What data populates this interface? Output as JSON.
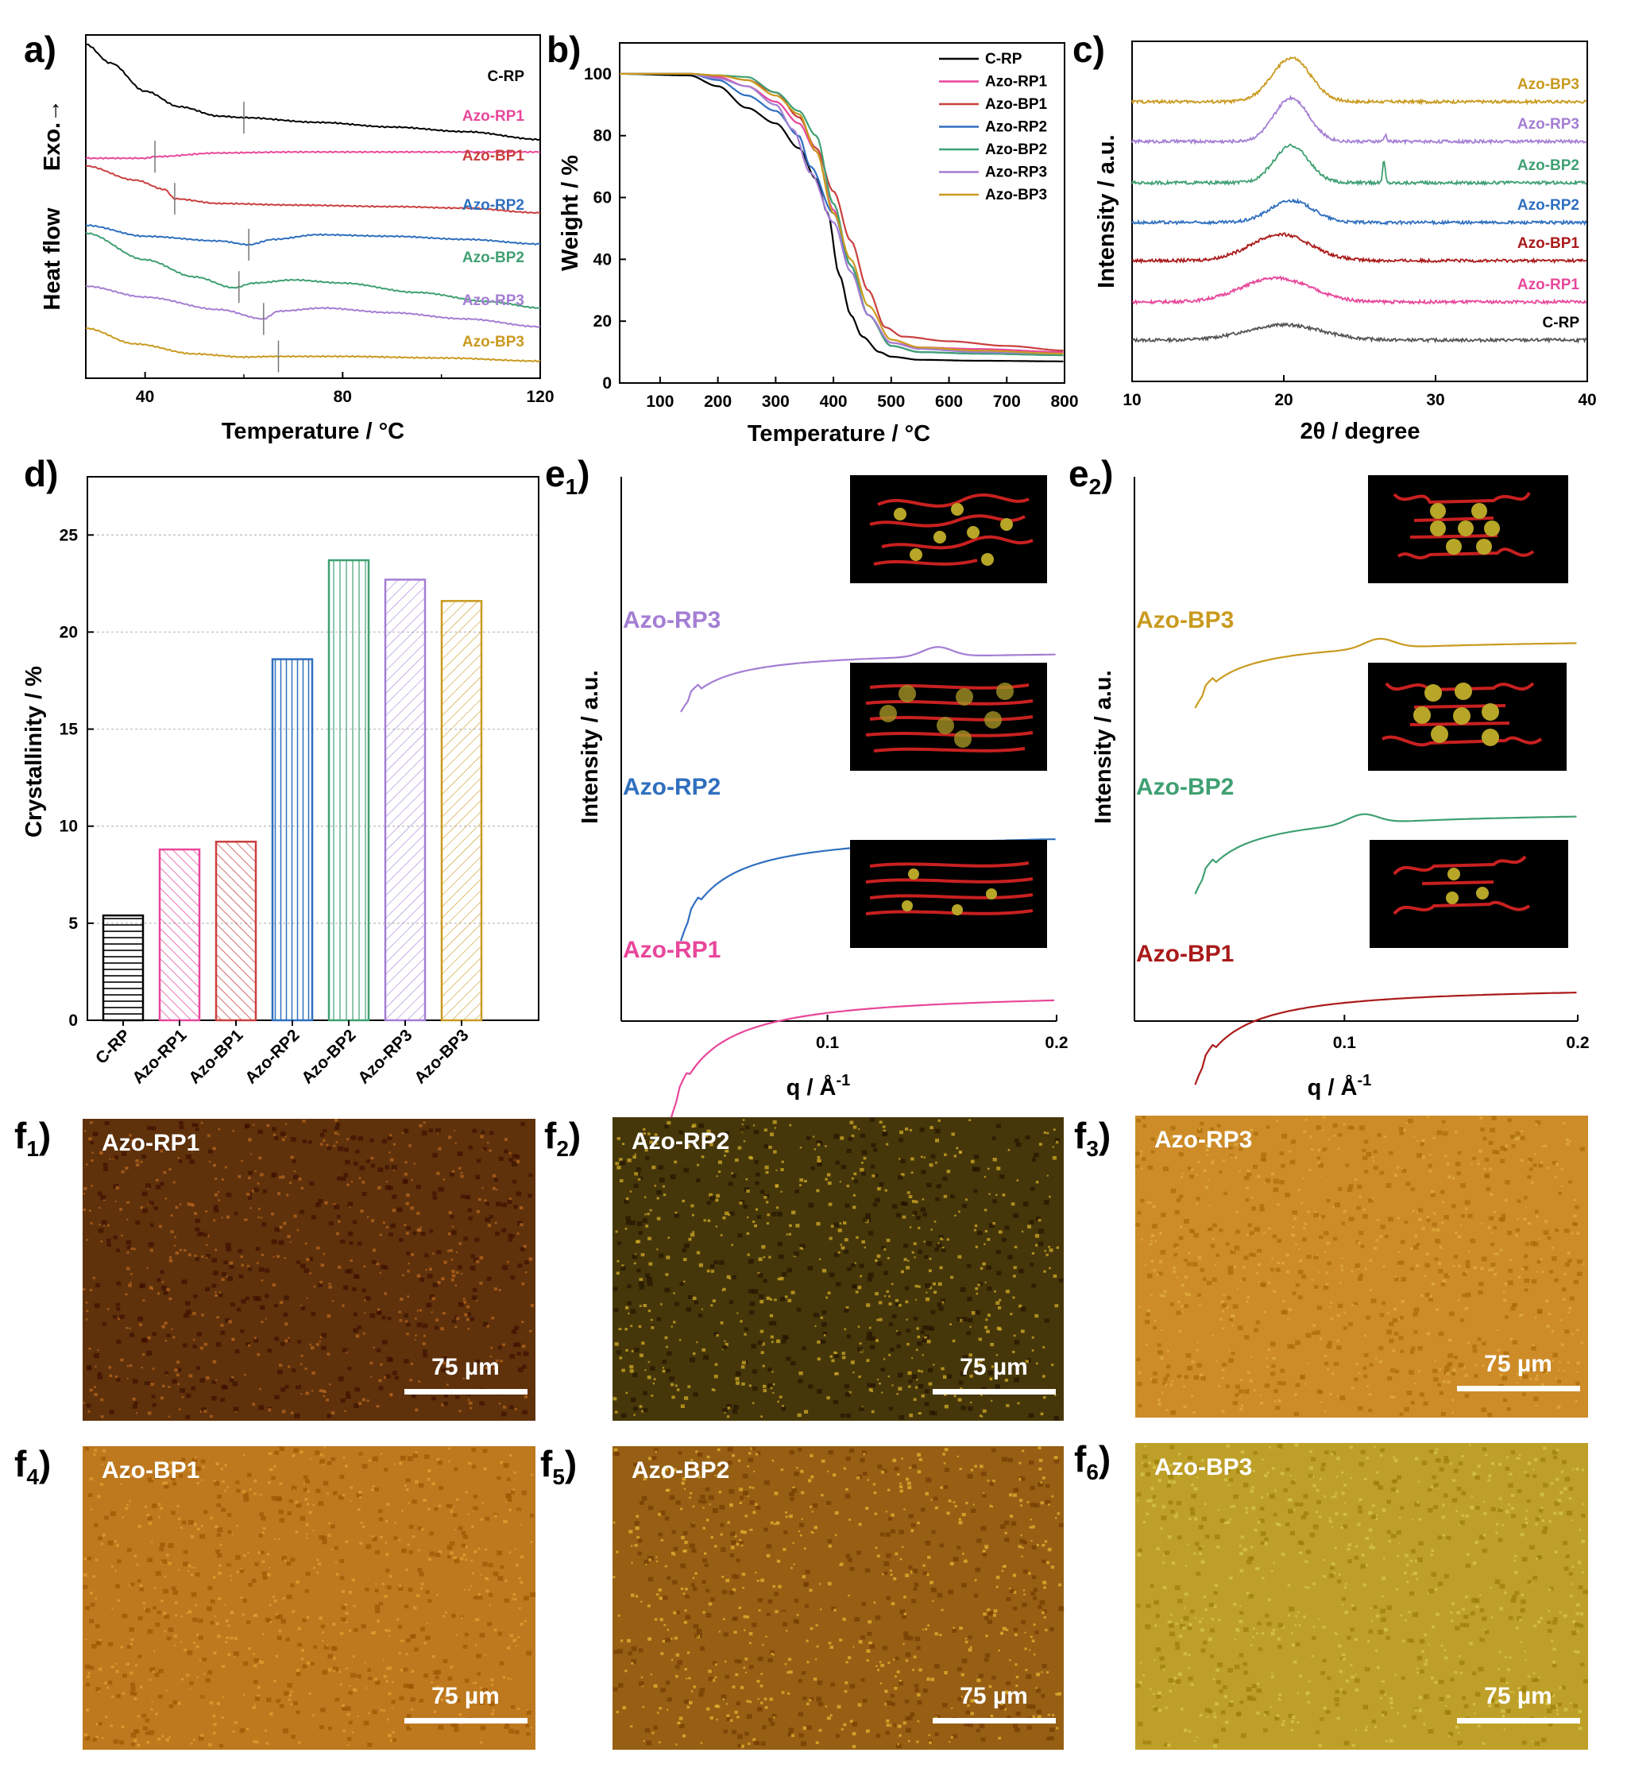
{
  "colors": {
    "C-RP": "#000000",
    "Azo-RP1": "#e8479b",
    "Azo-BP1": "#c9403f",
    "Azo-RP2": "#2f6fbf",
    "Azo-BP2": "#3fa072",
    "Azo-RP3": "#a47ed4",
    "Azo-BP3": "#c99a1f",
    "C-RP-xrd": "#555555",
    "Azo-BP1-saxs": "#aa1a1a"
  },
  "panels": {
    "a": "a)",
    "b": "b)",
    "c": "c)",
    "d": "d)",
    "e1": "e",
    "e1_sub": "1",
    "e2": "e",
    "e2_sub": "2",
    "f_letter": "f",
    "f1_sub": "1",
    "f2_sub": "2",
    "f3_sub": "3",
    "f4_sub": "4",
    "f5_sub": "5",
    "f6_sub": "6",
    "close": ")"
  },
  "chart_data": [
    {
      "panel": "a",
      "type": "line",
      "xlabel": "Temperature / °C",
      "ylabel": "Heat flow",
      "ylabel_note": "Exo.→",
      "xlim": [
        28,
        120
      ],
      "xticks": [
        40,
        80,
        120
      ],
      "series": [
        {
          "name": "C-RP",
          "x": [
            28,
            33,
            40,
            47,
            55,
            60,
            75,
            90,
            105,
            120
          ],
          "y": [
            9.1,
            8.5,
            7.6,
            7.1,
            6.8,
            6.75,
            6.6,
            6.45,
            6.3,
            6.05
          ],
          "tg": 60
        },
        {
          "name": "Azo-RP1",
          "x": [
            28,
            40,
            42,
            55,
            70,
            90,
            120
          ],
          "y": [
            5.45,
            5.45,
            5.5,
            5.62,
            5.65,
            5.65,
            5.65
          ],
          "tg": 42
        },
        {
          "name": "Azo-BP1",
          "x": [
            28,
            38,
            44,
            46,
            55,
            70,
            90,
            105,
            120
          ],
          "y": [
            5.2,
            4.75,
            4.45,
            4.15,
            4.0,
            3.95,
            3.9,
            3.85,
            3.7
          ],
          "tg": 46
        },
        {
          "name": "Azo-RP2",
          "x": [
            28,
            40,
            55,
            61,
            66,
            75,
            90,
            105,
            120
          ],
          "y": [
            3.3,
            2.95,
            2.8,
            2.68,
            2.85,
            3.0,
            2.95,
            2.85,
            2.7
          ],
          "tg": 61
        },
        {
          "name": "Azo-BP2",
          "x": [
            28,
            40,
            50,
            58,
            62,
            70,
            80,
            95,
            110,
            120
          ],
          "y": [
            3.05,
            2.2,
            1.65,
            1.3,
            1.45,
            1.55,
            1.45,
            1.15,
            0.85,
            0.65
          ],
          "tg": 59
        },
        {
          "name": "Azo-RP3",
          "x": [
            28,
            40,
            55,
            64,
            67,
            76,
            90,
            105,
            120
          ],
          "y": [
            1.35,
            1.0,
            0.6,
            0.3,
            0.55,
            0.65,
            0.5,
            0.3,
            0.05
          ],
          "tg": 64
        },
        {
          "name": "Azo-BP3",
          "x": [
            28,
            38,
            50,
            60,
            67,
            80,
            100,
            120
          ],
          "y": [
            0.0,
            -0.5,
            -0.82,
            -0.92,
            -0.9,
            -0.9,
            -0.95,
            -1.05
          ],
          "tg": 67
        }
      ]
    },
    {
      "panel": "b",
      "type": "line",
      "xlabel": "Temperature / °C",
      "ylabel": "Weight / %",
      "xlim": [
        30,
        800
      ],
      "ylim": [
        0,
        110
      ],
      "xticks": [
        100,
        200,
        300,
        400,
        500,
        600,
        700,
        800
      ],
      "yticks": [
        0,
        20,
        40,
        60,
        80,
        100
      ],
      "legend": "top-right",
      "series": [
        {
          "name": "C-RP",
          "x": [
            30,
            150,
            200,
            250,
            300,
            340,
            370,
            390,
            410,
            430,
            450,
            480,
            500,
            550,
            650,
            800
          ],
          "y": [
            100,
            99.5,
            96,
            89,
            84,
            76,
            66,
            55,
            35,
            22,
            15,
            10,
            8.5,
            7.5,
            7.2,
            7
          ]
        },
        {
          "name": "Azo-RP1",
          "x": [
            30,
            150,
            200,
            250,
            300,
            340,
            370,
            400,
            430,
            460,
            500,
            550,
            650,
            800
          ],
          "y": [
            100,
            100,
            99,
            96,
            91,
            84,
            75,
            56,
            38,
            22,
            13,
            11.5,
            11,
            10
          ]
        },
        {
          "name": "Azo-BP1",
          "x": [
            30,
            150,
            200,
            250,
            300,
            340,
            370,
            400,
            430,
            460,
            490,
            520,
            600,
            700,
            800
          ],
          "y": [
            100,
            100,
            99.5,
            98,
            94,
            86,
            76,
            62,
            46,
            30,
            18,
            15,
            13.5,
            12,
            10.5
          ]
        },
        {
          "name": "Azo-RP2",
          "x": [
            30,
            150,
            200,
            250,
            300,
            340,
            360,
            400,
            430,
            460,
            500,
            550,
            650,
            800
          ],
          "y": [
            100,
            100,
            98,
            93,
            88,
            80,
            70,
            55,
            38,
            22,
            12,
            10,
            9.5,
            9
          ]
        },
        {
          "name": "Azo-BP2",
          "x": [
            30,
            150,
            200,
            250,
            300,
            340,
            370,
            400,
            430,
            460,
            500,
            550,
            650,
            800
          ],
          "y": [
            100,
            100,
            99.5,
            99,
            94,
            88,
            80,
            58,
            38,
            22,
            12,
            10,
            9.5,
            9
          ]
        },
        {
          "name": "Azo-RP3",
          "x": [
            30,
            150,
            200,
            250,
            300,
            330,
            360,
            400,
            430,
            460,
            500,
            550,
            650,
            800
          ],
          "y": [
            100,
            100,
            98.5,
            96,
            90,
            82,
            68,
            52,
            36,
            22,
            13,
            11,
            10,
            9.5
          ]
        },
        {
          "name": "Azo-BP3",
          "x": [
            30,
            150,
            200,
            250,
            300,
            340,
            370,
            400,
            430,
            460,
            500,
            550,
            650,
            800
          ],
          "y": [
            100,
            100,
            99.5,
            98,
            93,
            87,
            75,
            55,
            40,
            25,
            14,
            11.5,
            10.5,
            9.5
          ]
        }
      ]
    },
    {
      "panel": "c",
      "type": "line",
      "xlabel": "2θ / degree",
      "ylabel": "Intensity / a.u.",
      "xlim": [
        10,
        40
      ],
      "xticks": [
        10,
        20,
        30,
        40
      ],
      "series": [
        {
          "name": "C-RP",
          "offset": 0,
          "peak": 20,
          "height": 0.35,
          "width": 3.5,
          "sharp": []
        },
        {
          "name": "Azo-RP1",
          "offset": 1,
          "peak": 19.5,
          "height": 0.55,
          "width": 3.2,
          "sharp": []
        },
        {
          "name": "Azo-BP1",
          "offset": 2,
          "peak": 19.8,
          "height": 0.6,
          "width": 2.8,
          "sharp": []
        },
        {
          "name": "Azo-RP2",
          "offset": 3,
          "peak": 20.5,
          "height": 0.5,
          "width": 2.0,
          "sharp": []
        },
        {
          "name": "Azo-BP2",
          "offset": 4,
          "peak": 20.5,
          "height": 0.85,
          "width": 1.6,
          "sharp": [
            {
              "x": 26.6,
              "h": 0.5
            }
          ]
        },
        {
          "name": "Azo-RP3",
          "offset": 5,
          "peak": 20.5,
          "height": 1.0,
          "width": 1.6,
          "sharp": [
            {
              "x": 26.7,
              "h": 0.15
            }
          ]
        },
        {
          "name": "Azo-BP3",
          "offset": 6,
          "peak": 20.5,
          "height": 1.0,
          "width": 1.8,
          "sharp": []
        }
      ]
    },
    {
      "panel": "d",
      "type": "bar",
      "ylabel": "Crystallinity / %",
      "ylim": [
        0,
        28
      ],
      "yticks": [
        0,
        5,
        10,
        15,
        20,
        25
      ],
      "grid": true,
      "categories": [
        "C-RP",
        "Azo-RP1",
        "Azo-BP1",
        "Azo-RP2",
        "Azo-BP2",
        "Azo-RP3",
        "Azo-BP3"
      ],
      "values": [
        5.4,
        8.8,
        9.2,
        18.6,
        23.7,
        22.7,
        21.6
      ]
    },
    {
      "panel": "e1",
      "type": "line",
      "xlabel": "q / Å",
      "xlabel_sup": "-1",
      "ylabel": "Intensity / a.u.",
      "xlim": [
        0.01,
        0.2
      ],
      "xticks": [
        0.1,
        0.2
      ],
      "series": [
        {
          "name": "Azo-RP3",
          "offset": 2,
          "bump": 0.148
        },
        {
          "name": "Azo-RP2",
          "offset": 1,
          "bump": null
        },
        {
          "name": "Azo-RP1",
          "offset": 0,
          "bump": null
        }
      ]
    },
    {
      "panel": "e2",
      "type": "line",
      "xlabel": "q / Å",
      "xlabel_sup": "-1",
      "ylabel": "Intensity / a.u.",
      "xlim": [
        0.01,
        0.2
      ],
      "xticks": [
        0.1,
        0.2
      ],
      "series": [
        {
          "name": "Azo-BP3",
          "offset": 2,
          "bump": 0.115
        },
        {
          "name": "Azo-BP2",
          "offset": 1,
          "bump": 0.108
        },
        {
          "name": "Azo-BP1",
          "offset": 0,
          "bump": null
        }
      ]
    }
  ],
  "micrographs": [
    {
      "name": "Azo-RP1",
      "scale": "75 µm"
    },
    {
      "name": "Azo-RP2",
      "scale": "75 µm"
    },
    {
      "name": "Azo-RP3",
      "scale": "75 µm"
    },
    {
      "name": "Azo-BP1",
      "scale": "75 µm"
    },
    {
      "name": "Azo-BP2",
      "scale": "75 µm"
    },
    {
      "name": "Azo-BP3",
      "scale": "75 µm"
    }
  ]
}
